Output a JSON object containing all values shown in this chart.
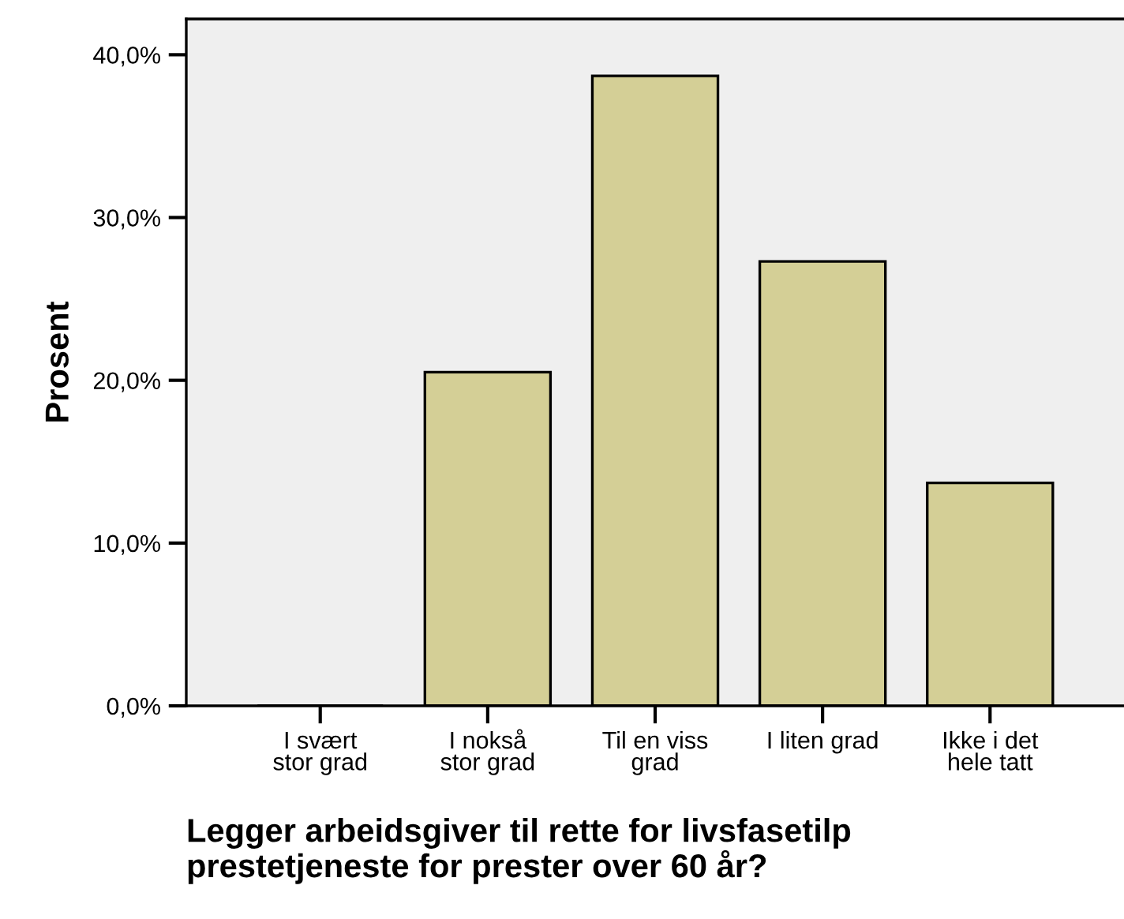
{
  "chart_data": {
    "type": "bar",
    "xlabel": "Legger arbeidsgiver til rette for livsfasetilp\nprestetjeneste for prester over 60 år?",
    "ylabel": "Prosent",
    "categories": [
      "I svært\nstor grad",
      "I nokså\nstor grad",
      "Til en viss\ngrad",
      "I liten grad",
      "Ikke i det\nhele tatt"
    ],
    "values": [
      0,
      20.5,
      38.7,
      27.3,
      13.7
    ],
    "color": "#d4cf96",
    "ylim": [
      0,
      42.2
    ],
    "yticks": [
      {
        "value": 0,
        "label": "0,0%"
      },
      {
        "value": 10,
        "label": "10,0%"
      },
      {
        "value": 20,
        "label": "20,0%"
      },
      {
        "value": 30,
        "label": "30,0%"
      },
      {
        "value": 40,
        "label": "40,0%"
      }
    ],
    "grid": false
  }
}
